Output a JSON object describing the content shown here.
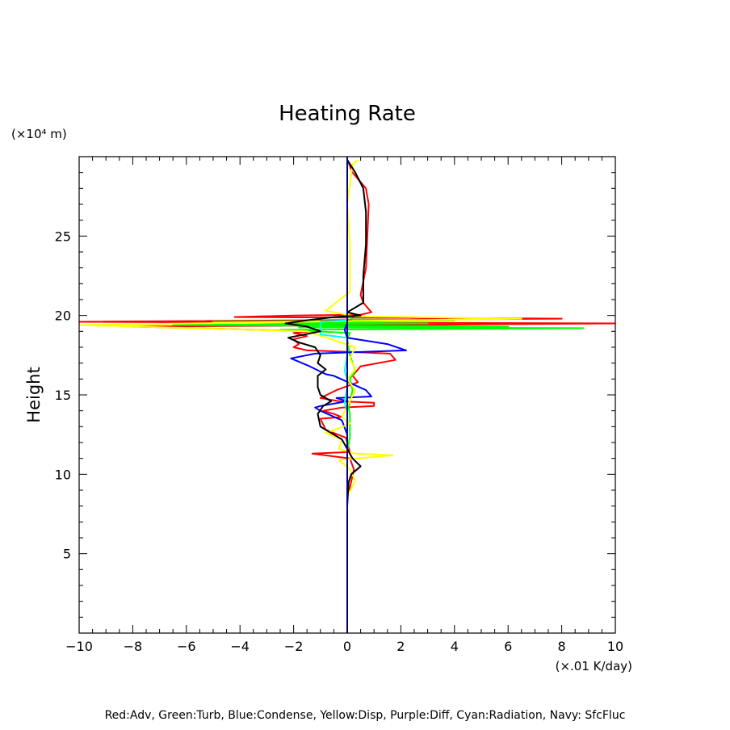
{
  "chart_data": {
    "type": "line",
    "title": "Heating Rate",
    "ylabel": "Height",
    "y_unit": "(×10⁴ m)",
    "x_unit": "(×.01 K/day)",
    "xlim": [
      -10,
      10
    ],
    "ylim": [
      0,
      30
    ],
    "x_ticks": [
      -10,
      -8,
      -6,
      -4,
      -2,
      0,
      2,
      4,
      6,
      8,
      10
    ],
    "x_tick_labels": [
      "−10",
      "−8",
      "−6",
      "−4",
      "−2",
      "0",
      "2",
      "4",
      "6",
      "8",
      "10"
    ],
    "y_ticks": [
      5,
      10,
      15,
      20,
      25
    ],
    "y_tick_labels": [
      "5",
      "10",
      "15",
      "20",
      "25"
    ],
    "legend": "Red:Adv, Green:Turb, Blue:Condense, Yellow:Disp, Purple:Diff, Cyan:Radiation, Navy: SfcFluc",
    "grid": false,
    "series": [
      {
        "name": "Red:Adv",
        "color": "#ff0000",
        "points": [
          [
            0.05,
            8.8
          ],
          [
            0.25,
            10.3
          ],
          [
            0.1,
            11.0
          ],
          [
            -1.3,
            11.3
          ],
          [
            0.1,
            11.4
          ],
          [
            -0.05,
            12.3
          ],
          [
            -0.8,
            12.8
          ],
          [
            -1.0,
            13.5
          ],
          [
            -0.2,
            13.6
          ],
          [
            -0.5,
            13.8
          ],
          [
            -0.9,
            14.0
          ],
          [
            -0.2,
            14.2
          ],
          [
            1.0,
            14.3
          ],
          [
            1.0,
            14.5
          ],
          [
            -0.3,
            14.6
          ],
          [
            -1.0,
            14.8
          ],
          [
            -0.4,
            15.3
          ],
          [
            0.4,
            15.8
          ],
          [
            0.2,
            16.2
          ],
          [
            0.5,
            16.8
          ],
          [
            1.8,
            17.2
          ],
          [
            1.6,
            17.6
          ],
          [
            0.2,
            17.7
          ],
          [
            -1.5,
            17.8
          ],
          [
            -2.0,
            18.0
          ],
          [
            -1.8,
            18.2
          ],
          [
            -2.0,
            18.5
          ],
          [
            -1.5,
            18.7
          ],
          [
            -2.0,
            18.9
          ],
          [
            -1.2,
            19.0
          ],
          [
            -8.0,
            19.3
          ],
          [
            -2.5,
            19.35
          ],
          [
            10.0,
            19.5
          ],
          [
            -10.0,
            19.6
          ],
          [
            8.0,
            19.8
          ],
          [
            -4.2,
            19.9
          ],
          [
            -2.0,
            20.0
          ],
          [
            0.5,
            20.05
          ],
          [
            0.9,
            20.2
          ],
          [
            0.6,
            20.8
          ],
          [
            0.5,
            21.3
          ],
          [
            0.7,
            23.0
          ],
          [
            0.8,
            27.0
          ],
          [
            0.7,
            28.0
          ],
          [
            0.2,
            29.0
          ],
          [
            0.0,
            29.8
          ]
        ]
      },
      {
        "name": "Green:Turb",
        "color": "#00ff00",
        "points": [
          [
            0.0,
            10.3
          ],
          [
            0.0,
            11.5
          ],
          [
            0.1,
            12.3
          ],
          [
            0.1,
            13.8
          ],
          [
            0.05,
            14.2
          ],
          [
            0.1,
            14.6
          ],
          [
            0.2,
            15.3
          ],
          [
            0.1,
            16.0
          ],
          [
            0.3,
            16.5
          ],
          [
            0.1,
            17.5
          ],
          [
            0.0,
            18.5
          ],
          [
            0.1,
            18.9
          ],
          [
            -2.5,
            19.1
          ],
          [
            8.8,
            19.2
          ],
          [
            -1.8,
            19.25
          ],
          [
            6.0,
            19.3
          ],
          [
            -6.5,
            19.4
          ],
          [
            3.0,
            19.5
          ],
          [
            -5.0,
            19.6
          ],
          [
            4.0,
            19.7
          ],
          [
            0.2,
            19.75
          ],
          [
            0.0,
            20.0
          ],
          [
            0.0,
            29.8
          ]
        ]
      },
      {
        "name": "Blue:Condense",
        "color": "#0000ff",
        "points": [
          [
            0.0,
            12.5
          ],
          [
            -0.2,
            13.4
          ],
          [
            -1.0,
            14.0
          ],
          [
            -1.2,
            14.2
          ],
          [
            -1.0,
            14.3
          ],
          [
            0.0,
            14.6
          ],
          [
            -0.4,
            14.8
          ],
          [
            0.9,
            14.9
          ],
          [
            0.7,
            15.3
          ],
          [
            -0.5,
            16.2
          ],
          [
            -0.8,
            16.3
          ],
          [
            -1.4,
            16.8
          ],
          [
            -2.1,
            17.3
          ],
          [
            -1.2,
            17.6
          ],
          [
            2.2,
            17.8
          ],
          [
            1.5,
            18.2
          ],
          [
            0.0,
            18.6
          ],
          [
            -0.1,
            19.1
          ],
          [
            0.0,
            19.5
          ],
          [
            0.0,
            29.8
          ]
        ]
      },
      {
        "name": "Yellow:Disp",
        "color": "#ffff00",
        "points": [
          [
            0.0,
            8.6
          ],
          [
            0.3,
            9.6
          ],
          [
            0.1,
            10.3
          ],
          [
            -0.3,
            10.9
          ],
          [
            1.7,
            11.2
          ],
          [
            0.3,
            11.3
          ],
          [
            -0.3,
            11.6
          ],
          [
            -0.2,
            12.2
          ],
          [
            -0.8,
            12.6
          ],
          [
            -0.3,
            12.9
          ],
          [
            0.1,
            13.2
          ],
          [
            -0.2,
            13.6
          ],
          [
            0.0,
            14.3
          ],
          [
            0.3,
            15.3
          ],
          [
            0.0,
            16.0
          ],
          [
            0.3,
            16.6
          ],
          [
            0.1,
            17.3
          ],
          [
            0.3,
            18.0
          ],
          [
            -1.5,
            19.0
          ],
          [
            -10.0,
            19.4
          ],
          [
            6.5,
            19.8
          ],
          [
            0.3,
            19.95
          ],
          [
            -0.8,
            20.3
          ],
          [
            0.1,
            21.5
          ],
          [
            0.1,
            24.5
          ],
          [
            0.0,
            27.0
          ],
          [
            0.2,
            29.5
          ],
          [
            0.4,
            29.8
          ]
        ]
      },
      {
        "name": "Cyan:Radiation",
        "color": "#00ffff",
        "points": [
          [
            0.0,
            12.0
          ],
          [
            0.0,
            14.0
          ],
          [
            -0.1,
            14.5
          ],
          [
            0.0,
            15.5
          ],
          [
            0.0,
            16.0
          ],
          [
            -0.1,
            16.5
          ],
          [
            0.0,
            17.5
          ],
          [
            0.0,
            18.6
          ],
          [
            -1.0,
            18.8
          ],
          [
            -1.0,
            19.6
          ],
          [
            0.0,
            19.7
          ],
          [
            0.0,
            29.8
          ]
        ]
      },
      {
        "name": "Black",
        "color": "#000000",
        "points": [
          [
            0.0,
            8.0
          ],
          [
            0.05,
            9.5
          ],
          [
            0.15,
            10.0
          ],
          [
            0.5,
            10.5
          ],
          [
            0.2,
            11.0
          ],
          [
            0.0,
            11.6
          ],
          [
            -0.2,
            12.2
          ],
          [
            -1.0,
            13.0
          ],
          [
            -1.1,
            13.8
          ],
          [
            -0.9,
            14.3
          ],
          [
            -0.6,
            14.6
          ],
          [
            -1.0,
            15.0
          ],
          [
            -1.1,
            15.5
          ],
          [
            -1.1,
            16.2
          ],
          [
            -0.8,
            16.6
          ],
          [
            -1.1,
            17.0
          ],
          [
            -1.0,
            17.5
          ],
          [
            -1.2,
            18.0
          ],
          [
            -1.8,
            18.3
          ],
          [
            -2.2,
            18.6
          ],
          [
            -1.0,
            19.0
          ],
          [
            -1.5,
            19.3
          ],
          [
            -2.3,
            19.5
          ],
          [
            -1.5,
            19.7
          ],
          [
            -0.5,
            19.9
          ],
          [
            0.5,
            20.0
          ],
          [
            0.0,
            20.2
          ],
          [
            0.2,
            20.4
          ],
          [
            0.6,
            20.8
          ],
          [
            0.6,
            22.5
          ],
          [
            0.7,
            24.5
          ],
          [
            0.7,
            26.5
          ],
          [
            0.6,
            28.0
          ],
          [
            0.3,
            29.0
          ],
          [
            0.0,
            29.8
          ]
        ]
      },
      {
        "name": "Navy: SfcFluc",
        "color": "#000080",
        "points": [
          [
            0.0,
            0.0
          ],
          [
            0.0,
            30.0
          ]
        ]
      }
    ]
  }
}
